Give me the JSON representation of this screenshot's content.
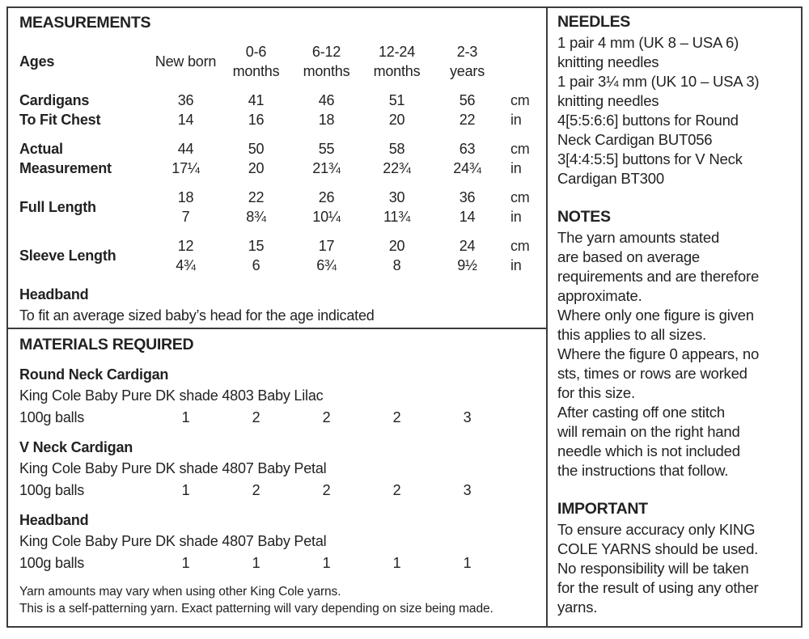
{
  "colors": {
    "border": "#3c3c3c",
    "text": "#222222",
    "background": "#ffffff"
  },
  "measurements": {
    "title": "MEASUREMENTS",
    "ages_label": "Ages",
    "age_columns": [
      {
        "line1": "New born",
        "line2": ""
      },
      {
        "line1": "0-6",
        "line2": "months"
      },
      {
        "line1": "6-12",
        "line2": "months"
      },
      {
        "line1": "12-24",
        "line2": "months"
      },
      {
        "line1": "2-3",
        "line2": "years"
      }
    ],
    "rows": [
      {
        "label1": "Cardigans",
        "label2": "To Fit Chest",
        "cm": [
          "36",
          "41",
          "46",
          "51",
          "56"
        ],
        "cm_unit": "cm",
        "in": [
          "14",
          "16",
          "18",
          "20",
          "22"
        ],
        "in_unit": "in"
      },
      {
        "label1": "Actual",
        "label2": "Measurement",
        "cm": [
          "44",
          "50",
          "55",
          "58",
          "63"
        ],
        "cm_unit": "cm",
        "in": [
          "17¼",
          "20",
          "21¾",
          "22¾",
          "24¾"
        ],
        "in_unit": "in"
      },
      {
        "label1": "Full Length",
        "label2": "",
        "cm": [
          "18",
          "22",
          "26",
          "30",
          "36"
        ],
        "cm_unit": "cm",
        "in": [
          "7",
          "8¾",
          "10¼",
          "11¾",
          "14"
        ],
        "in_unit": "in"
      },
      {
        "label1": "Sleeve Length",
        "label2": "",
        "cm": [
          "12",
          "15",
          "17",
          "20",
          "24"
        ],
        "cm_unit": "cm",
        "in": [
          "4¾",
          "6",
          "6¾",
          "8",
          "9½"
        ],
        "in_unit": "in"
      }
    ],
    "headband_title": "Headband",
    "headband_note": "To fit an average sized baby’s head for the age indicated"
  },
  "materials": {
    "title": "MATERIALS REQUIRED",
    "items": [
      {
        "name": "Round Neck Cardigan",
        "yarn": "King Cole Baby Pure DK shade 4803 Baby Lilac",
        "balls_label": "100g balls",
        "balls": [
          "1",
          "2",
          "2",
          "2",
          "3"
        ]
      },
      {
        "name": "V Neck Cardigan",
        "yarn": "King Cole Baby Pure DK shade 4807 Baby Petal",
        "balls_label": "100g balls",
        "balls": [
          "1",
          "2",
          "2",
          "2",
          "3"
        ]
      },
      {
        "name": "Headband",
        "yarn": "King Cole Baby Pure DK shade 4807 Baby Petal",
        "balls_label": "100g balls",
        "balls": [
          "1",
          "1",
          "1",
          "1",
          "1"
        ]
      }
    ],
    "footnotes": [
      "Yarn amounts may vary when using other King Cole yarns.",
      "This is a self-patterning yarn. Exact patterning will vary depending on size being made."
    ]
  },
  "needles": {
    "title": "NEEDLES",
    "lines": [
      "1 pair 4 mm (UK 8 – USA 6)",
      "knitting needles",
      "1 pair 3¼ mm (UK 10 – USA 3)",
      "knitting needles",
      "4[5:5:6:6] buttons for Round",
      "Neck Cardigan BUT056",
      "3[4:4:5:5] buttons for V Neck",
      "Cardigan BT300"
    ]
  },
  "notes": {
    "title": "NOTES",
    "lines": [
      "The yarn amounts stated",
      "are based on average",
      "requirements and are therefore",
      "approximate.",
      "Where only one figure is given",
      "this applies to all sizes.",
      "Where the figure 0 appears, no",
      "sts, times or rows are worked",
      "for this size.",
      "After casting off one stitch",
      "will remain on the right hand",
      "needle which is not included",
      "the instructions that follow."
    ]
  },
  "important": {
    "title": "IMPORTANT",
    "lines": [
      "To ensure accuracy only KING",
      "COLE YARNS should be used.",
      "No responsibility will be taken",
      "for the result of using any other",
      "yarns."
    ]
  }
}
